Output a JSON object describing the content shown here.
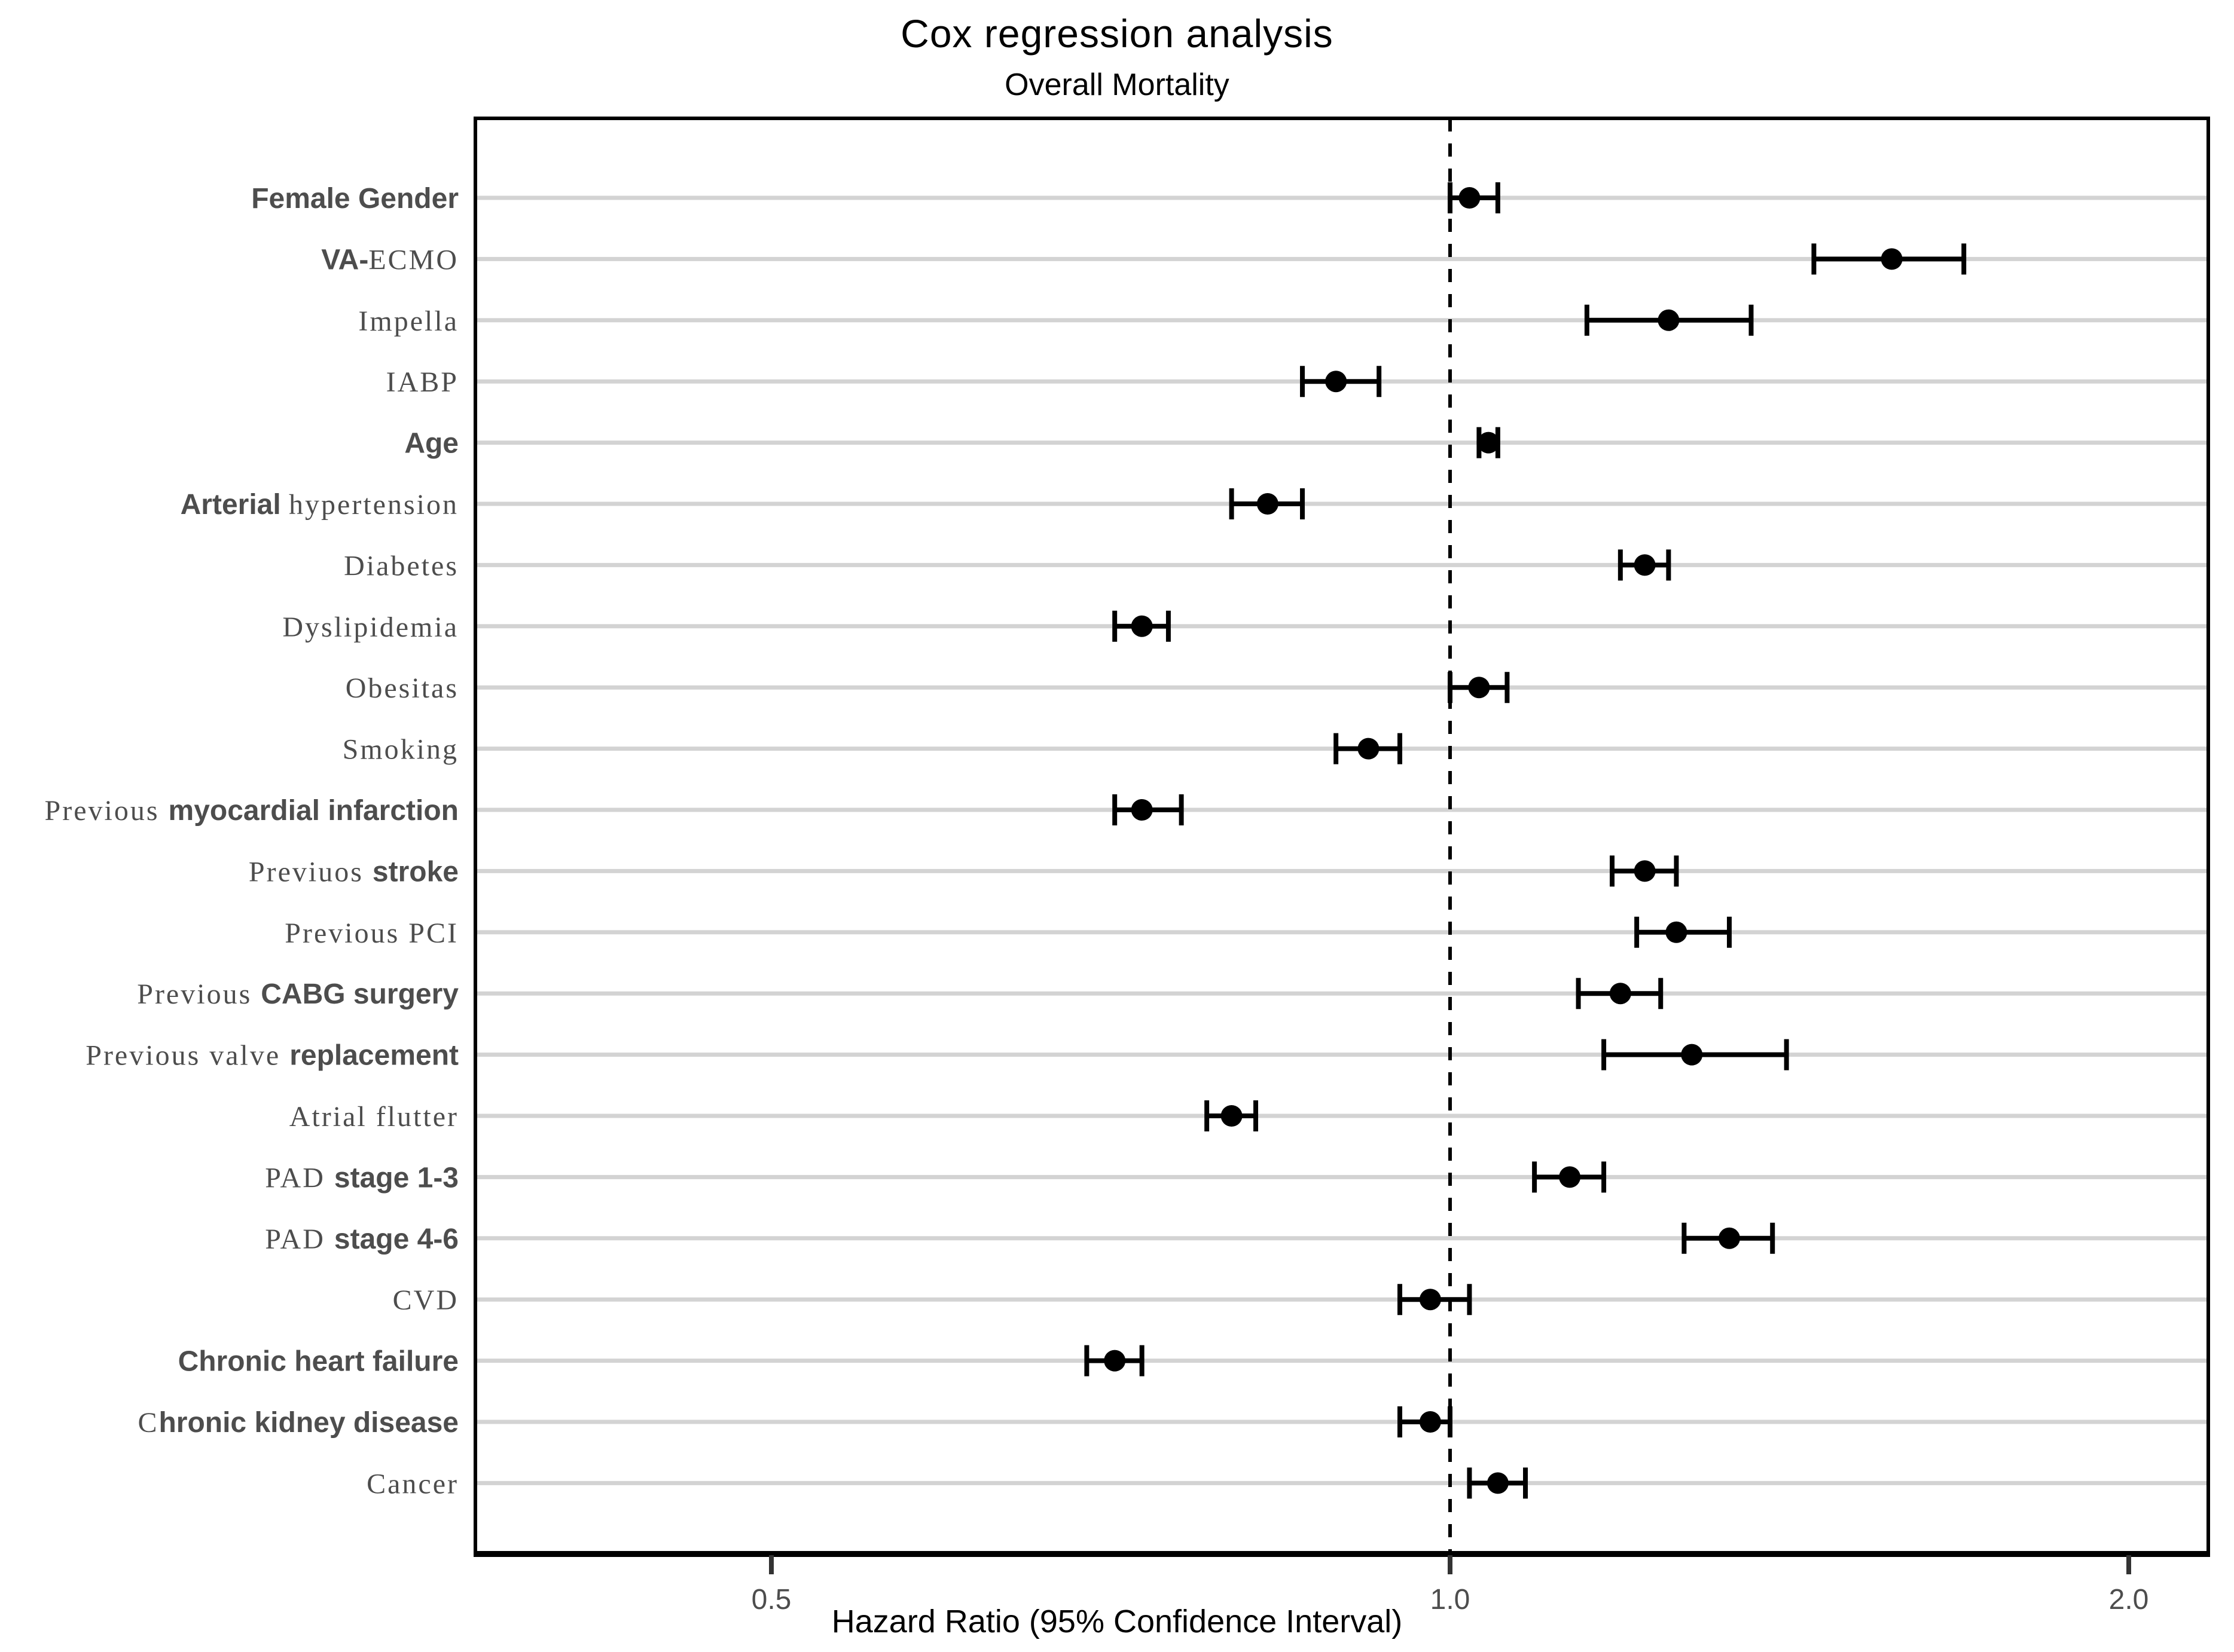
{
  "chart_data": {
    "type": "scatter",
    "subtype": "forest-plot",
    "title": "Cox regression analysis",
    "subtitle": "Overall Mortality",
    "xlabel": "Hazard Ratio (95% Confidence Interval)",
    "x_scale": "log",
    "xlim": [
      0.37,
      2.17
    ],
    "x_ticks": [
      {
        "label": "0.5",
        "value": 0.5
      },
      {
        "label": "1.0",
        "value": 1.0
      },
      {
        "label": "2.0",
        "value": 2.0
      }
    ],
    "reference_line": 1.0,
    "grid": "horizontal",
    "legend": "none",
    "colors": {
      "marker": "#000000",
      "ci_line": "#000000",
      "reference_line": "#000000",
      "gridline": "#d3d3d3",
      "panel_border": "#000000",
      "axis_tick": "#333333",
      "tick_label": "#4d4d4d",
      "row_label": "#4d4d4d",
      "title": "#000000"
    },
    "rows": [
      {
        "label": "Female Gender",
        "parts": [
          {
            "text": "Female Gender",
            "style": "bold"
          }
        ],
        "hr": 1.02,
        "lo": 1.0,
        "hi": 1.05
      },
      {
        "label": "VA-ECMO",
        "parts": [
          {
            "text": "VA-",
            "style": "bold"
          },
          {
            "text": "ECMO",
            "style": "serif"
          }
        ],
        "hr": 1.57,
        "lo": 1.45,
        "hi": 1.69
      },
      {
        "label": "Impella",
        "parts": [
          {
            "text": "Impella",
            "style": "serif"
          }
        ],
        "hr": 1.25,
        "lo": 1.15,
        "hi": 1.36
      },
      {
        "label": "IABP",
        "parts": [
          {
            "text": "IABP",
            "style": "serif"
          }
        ],
        "hr": 0.89,
        "lo": 0.86,
        "hi": 0.93
      },
      {
        "label": "Age",
        "parts": [
          {
            "text": "Age",
            "style": "bold"
          }
        ],
        "hr": 1.04,
        "lo": 1.03,
        "hi": 1.05
      },
      {
        "label": "Arterial hypertension",
        "parts": [
          {
            "text": "Arterial ",
            "style": "bold"
          },
          {
            "text": "hypertension",
            "style": "serif"
          }
        ],
        "hr": 0.83,
        "lo": 0.8,
        "hi": 0.86
      },
      {
        "label": "Diabetes",
        "parts": [
          {
            "text": "Diabetes",
            "style": "serif"
          }
        ],
        "hr": 1.22,
        "lo": 1.19,
        "hi": 1.25
      },
      {
        "label": "Dyslipidemia",
        "parts": [
          {
            "text": "Dyslipidemia",
            "style": "serif"
          }
        ],
        "hr": 0.73,
        "lo": 0.71,
        "hi": 0.75
      },
      {
        "label": "Obesitas",
        "parts": [
          {
            "text": "Obesitas",
            "style": "serif"
          }
        ],
        "hr": 1.03,
        "lo": 1.0,
        "hi": 1.06
      },
      {
        "label": "Smoking",
        "parts": [
          {
            "text": "Smoking",
            "style": "serif"
          }
        ],
        "hr": 0.92,
        "lo": 0.89,
        "hi": 0.95
      },
      {
        "label": "Previous myocardial infarction",
        "parts": [
          {
            "text": "Previous ",
            "style": "serif"
          },
          {
            "text": "myocardial infarction",
            "style": "bold"
          }
        ],
        "hr": 0.73,
        "lo": 0.71,
        "hi": 0.76
      },
      {
        "label": "Previuos stroke",
        "parts": [
          {
            "text": "Previuos ",
            "style": "serif"
          },
          {
            "text": "stroke",
            "style": "bold"
          }
        ],
        "hr": 1.22,
        "lo": 1.18,
        "hi": 1.26
      },
      {
        "label": "Previous PCI",
        "parts": [
          {
            "text": "Previous PCI",
            "style": "serif"
          }
        ],
        "hr": 1.26,
        "lo": 1.21,
        "hi": 1.33
      },
      {
        "label": "Previous CABG surgery",
        "parts": [
          {
            "text": "Previous ",
            "style": "serif"
          },
          {
            "text": "CABG surgery",
            "style": "bold"
          }
        ],
        "hr": 1.19,
        "lo": 1.14,
        "hi": 1.24
      },
      {
        "label": "Previous valve replacement",
        "parts": [
          {
            "text": "Previous valve ",
            "style": "serif"
          },
          {
            "text": "replacement",
            "style": "bold"
          }
        ],
        "hr": 1.28,
        "lo": 1.17,
        "hi": 1.41
      },
      {
        "label": "Atrial flutter",
        "parts": [
          {
            "text": "Atrial flutter",
            "style": "serif"
          }
        ],
        "hr": 0.8,
        "lo": 0.78,
        "hi": 0.82
      },
      {
        "label": "PAD stage 1-3",
        "parts": [
          {
            "text": "PAD ",
            "style": "serif"
          },
          {
            "text": "stage 1-3",
            "style": "bold"
          }
        ],
        "hr": 1.13,
        "lo": 1.09,
        "hi": 1.17
      },
      {
        "label": "PAD stage 4-6",
        "parts": [
          {
            "text": "PAD ",
            "style": "serif"
          },
          {
            "text": "stage 4-6",
            "style": "bold"
          }
        ],
        "hr": 1.33,
        "lo": 1.27,
        "hi": 1.39
      },
      {
        "label": "CVD",
        "parts": [
          {
            "text": "CVD",
            "style": "serif"
          }
        ],
        "hr": 0.98,
        "lo": 0.95,
        "hi": 1.02
      },
      {
        "label": "Chronic heart failure",
        "parts": [
          {
            "text": "Chronic heart failure",
            "style": "bold"
          }
        ],
        "hr": 0.71,
        "lo": 0.69,
        "hi": 0.73
      },
      {
        "label": "Chronic kidney disease",
        "parts": [
          {
            "text": "C",
            "style": "serif"
          },
          {
            "text": "hronic kidney disease",
            "style": "bold"
          }
        ],
        "hr": 0.98,
        "lo": 0.95,
        "hi": 1.0
      },
      {
        "label": "Cancer",
        "parts": [
          {
            "text": "Cancer",
            "style": "serif"
          }
        ],
        "hr": 1.05,
        "lo": 1.02,
        "hi": 1.08
      }
    ]
  }
}
